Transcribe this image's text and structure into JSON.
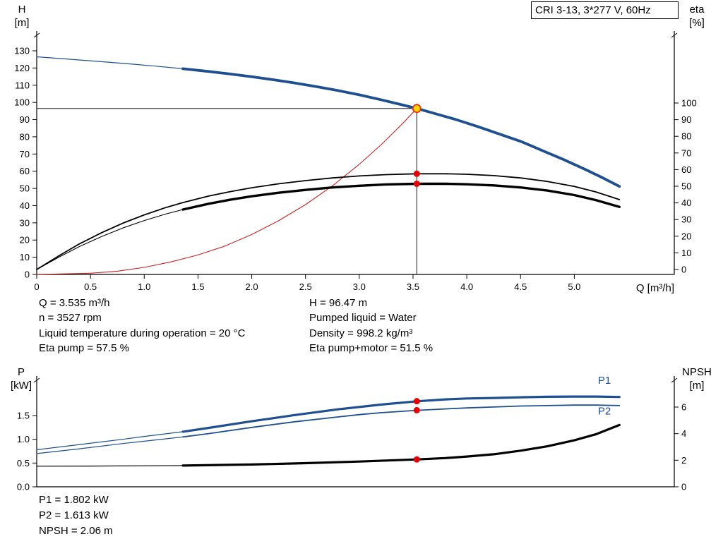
{
  "info_top": {
    "left": [
      "Q = 3.535 m³/h",
      "n = 3527 rpm",
      "Liquid temperature during operation = 20 °C",
      "Eta pump = 57.5 %"
    ],
    "right": [
      "H = 96.47 m",
      "Pumped liquid = Water",
      "Density = 998.2 kg/m³",
      "Eta pump+motor = 51.5 %"
    ]
  },
  "info_bottom": [
    "P1 = 1.802 kW",
    "P2 = 1.613 kW",
    "NPSH = 2.06 m"
  ],
  "chart_data": [
    {
      "id": "qh-eta",
      "type": "line",
      "title": "CRI 3-13, 3*277 V, 60Hz",
      "xlabel": "Q [m³/h]",
      "ylabel_left_lines": [
        "H",
        "[m]"
      ],
      "ylabel_right_lines": [
        "eta",
        "[%]"
      ],
      "xlim": [
        0,
        5.93
      ],
      "ylim_left": [
        0,
        130
      ],
      "ylim_right": [
        0,
        100
      ],
      "x_ticks": [
        0,
        0.5,
        1,
        1.5,
        2,
        2.5,
        3,
        3.5,
        4,
        4.5,
        5
      ],
      "x_tick_labels": [
        "0",
        "0.5",
        "1.0",
        "1.5",
        "2.0",
        "2.5",
        "3.0",
        "3.5",
        "4.0",
        "4.5",
        "5.0"
      ],
      "left_ticks": [
        0,
        10,
        20,
        30,
        40,
        50,
        60,
        70,
        80,
        90,
        100,
        110,
        120,
        130
      ],
      "left_tick_labels": [
        "0",
        "10",
        "20",
        "30",
        "40",
        "50",
        "60",
        "70",
        "80",
        "90",
        "100",
        "110",
        "120",
        "130"
      ],
      "right_ticks": [
        0,
        10,
        20,
        30,
        40,
        50,
        60,
        70,
        80,
        90,
        100
      ],
      "right_tick_labels": [
        "0",
        "10",
        "20",
        "30",
        "40",
        "50",
        "60",
        "70",
        "80",
        "90",
        "100"
      ],
      "guides": {
        "q": 3.535,
        "h": 96.47,
        "v_top": 99.2
      },
      "series": [
        {
          "name": "qh-curve-thin",
          "axis": "left",
          "color": "#1e4f91",
          "width": 1.2,
          "points": [
            [
              0,
              126.5
            ],
            [
              0.3,
              125.1
            ],
            [
              0.6,
              123.7
            ],
            [
              0.9,
              122.2
            ],
            [
              1.1,
              121.1
            ],
            [
              1.36,
              119.6
            ]
          ]
        },
        {
          "name": "qh-curve",
          "axis": "left",
          "color": "#1e4f91",
          "width": 3.8,
          "points": [
            [
              1.36,
              119.6
            ],
            [
              1.6,
              118.0
            ],
            [
              1.8,
              116.5
            ],
            [
              2.0,
              114.9
            ],
            [
              2.2,
              113.2
            ],
            [
              2.4,
              111.3
            ],
            [
              2.6,
              109.2
            ],
            [
              2.8,
              106.9
            ],
            [
              3.0,
              104.4
            ],
            [
              3.2,
              101.6
            ],
            [
              3.4,
              98.6
            ],
            [
              3.535,
              96.5
            ],
            [
              3.7,
              93.6
            ],
            [
              3.9,
              90.0
            ],
            [
              4.1,
              86.0
            ],
            [
              4.3,
              81.7
            ],
            [
              4.5,
              77.4
            ],
            [
              4.7,
              72.1
            ],
            [
              4.9,
              66.8
            ],
            [
              5.1,
              61.1
            ],
            [
              5.25,
              56.6
            ],
            [
              5.42,
              51.2
            ]
          ]
        },
        {
          "name": "system-curve",
          "axis": "left",
          "color": "#cc2222",
          "width": 1.1,
          "points": [
            [
              0,
              0
            ],
            [
              0.5,
              0.7
            ],
            [
              0.75,
              1.9
            ],
            [
              1.0,
              4.1
            ],
            [
              1.25,
              7.3
            ],
            [
              1.5,
              11.3
            ],
            [
              1.75,
              16.5
            ],
            [
              2.0,
              23.2
            ],
            [
              2.25,
              31.2
            ],
            [
              2.5,
              40.6
            ],
            [
              2.75,
              51.5
            ],
            [
              3.0,
              64.0
            ],
            [
              3.2,
              75.2
            ],
            [
              3.4,
              87.5
            ],
            [
              3.535,
              96.47
            ]
          ]
        },
        {
          "name": "eta-pump",
          "axis": "right",
          "color": "#000000",
          "width": 1.8,
          "points": [
            [
              0,
              0
            ],
            [
              0.2,
              8
            ],
            [
              0.4,
              15.5
            ],
            [
              0.6,
              22
            ],
            [
              0.8,
              27.8
            ],
            [
              1.0,
              32.8
            ],
            [
              1.2,
              37.2
            ],
            [
              1.36,
              40.2
            ],
            [
              1.6,
              44.1
            ],
            [
              1.8,
              46.8
            ],
            [
              2.0,
              49.1
            ],
            [
              2.25,
              51.5
            ],
            [
              2.5,
              53.4
            ],
            [
              2.75,
              55.0
            ],
            [
              3.0,
              56.2
            ],
            [
              3.25,
              57.0
            ],
            [
              3.535,
              57.5
            ],
            [
              3.8,
              57.5
            ],
            [
              4.0,
              57.2
            ],
            [
              4.25,
              56.4
            ],
            [
              4.5,
              55.0
            ],
            [
              4.75,
              52.9
            ],
            [
              5.0,
              49.9
            ],
            [
              5.2,
              46.6
            ],
            [
              5.42,
              42.0
            ]
          ]
        },
        {
          "name": "eta-pump-motor-thin",
          "axis": "right",
          "color": "#000000",
          "width": 1.1,
          "points": [
            [
              0,
              0
            ],
            [
              0.2,
              7.2
            ],
            [
              0.4,
              13.9
            ],
            [
              0.6,
              19.7
            ],
            [
              0.8,
              24.9
            ],
            [
              1.0,
              29.4
            ],
            [
              1.2,
              33.3
            ],
            [
              1.36,
              36.0
            ]
          ]
        },
        {
          "name": "eta-pump-motor",
          "axis": "right",
          "color": "#000000",
          "width": 3.4,
          "points": [
            [
              1.36,
              36.0
            ],
            [
              1.6,
              39.5
            ],
            [
              1.8,
              41.9
            ],
            [
              2.0,
              44.0
            ],
            [
              2.25,
              46.1
            ],
            [
              2.5,
              47.8
            ],
            [
              2.75,
              49.3
            ],
            [
              3.0,
              50.3
            ],
            [
              3.25,
              51.1
            ],
            [
              3.535,
              51.5
            ],
            [
              3.8,
              51.5
            ],
            [
              4.0,
              51.2
            ],
            [
              4.25,
              50.5
            ],
            [
              4.5,
              49.3
            ],
            [
              4.75,
              47.4
            ],
            [
              5.0,
              44.7
            ],
            [
              5.2,
              41.7
            ],
            [
              5.42,
              37.6
            ]
          ]
        }
      ],
      "markers": [
        {
          "name": "duty-point",
          "axis": "left",
          "q": 3.535,
          "v": 96.47,
          "r": 5.5,
          "fill": "#ffd500",
          "stroke": "#e63312"
        },
        {
          "name": "eta-pump-dot",
          "axis": "right",
          "q": 3.535,
          "v": 57.5,
          "r": 4.5,
          "fill": "#e60000"
        },
        {
          "name": "eta-pump-motor-dot",
          "axis": "right",
          "q": 3.535,
          "v": 51.5,
          "r": 4.5,
          "fill": "#e60000"
        }
      ]
    },
    {
      "id": "p-npsh",
      "type": "line",
      "title": "",
      "xlabel": "",
      "ylabel_left_lines": [
        "P",
        "[kW]"
      ],
      "ylabel_right_lines": [
        "NPSH",
        "[m]"
      ],
      "xlim": [
        0,
        5.93
      ],
      "ylim_left": [
        0,
        1.5
      ],
      "ylim_right": [
        0,
        6
      ],
      "x_ticks": [],
      "x_tick_labels": [],
      "left_ticks": [
        0,
        0.5,
        1,
        1.5
      ],
      "left_tick_labels": [
        "0.0",
        "0.5",
        "1.0",
        "1.5"
      ],
      "right_ticks": [
        0,
        2,
        4,
        6
      ],
      "right_tick_labels": [
        "0",
        "2",
        "4",
        "6"
      ],
      "series": [
        {
          "name": "p1-thin",
          "axis": "left",
          "color": "#1e4f91",
          "width": 1.2,
          "points": [
            [
              0,
              0.78
            ],
            [
              0.4,
              0.89
            ],
            [
              0.8,
              1.0
            ],
            [
              1.0,
              1.06
            ],
            [
              1.36,
              1.16
            ]
          ]
        },
        {
          "name": "p1",
          "axis": "left",
          "color": "#1e4f91",
          "width": 3.2,
          "label": {
            "text": "P1",
            "q": 5.28,
            "v": 2.17
          },
          "points": [
            [
              1.36,
              1.16
            ],
            [
              1.6,
              1.24
            ],
            [
              2.0,
              1.38
            ],
            [
              2.4,
              1.51
            ],
            [
              2.8,
              1.63
            ],
            [
              3.0,
              1.68
            ],
            [
              3.2,
              1.73
            ],
            [
              3.535,
              1.8
            ],
            [
              3.8,
              1.84
            ],
            [
              4.0,
              1.86
            ],
            [
              4.25,
              1.87
            ],
            [
              4.5,
              1.885
            ],
            [
              4.75,
              1.895
            ],
            [
              5.0,
              1.9
            ],
            [
              5.2,
              1.9
            ],
            [
              5.42,
              1.89
            ]
          ]
        },
        {
          "name": "p2-thin",
          "axis": "left",
          "color": "#1e4f91",
          "width": 1.2,
          "points": [
            [
              0,
              0.7
            ],
            [
              0.4,
              0.8
            ],
            [
              0.8,
              0.91
            ],
            [
              1.0,
              0.96
            ],
            [
              1.36,
              1.05
            ]
          ]
        },
        {
          "name": "p2",
          "axis": "left",
          "color": "#1e4f91",
          "width": 1.8,
          "label": {
            "text": "P2",
            "q": 5.28,
            "v": 1.52
          },
          "points": [
            [
              1.36,
              1.05
            ],
            [
              1.6,
              1.12
            ],
            [
              2.0,
              1.25
            ],
            [
              2.4,
              1.37
            ],
            [
              2.8,
              1.47
            ],
            [
              3.0,
              1.52
            ],
            [
              3.2,
              1.56
            ],
            [
              3.535,
              1.61
            ],
            [
              3.8,
              1.64
            ],
            [
              4.0,
              1.66
            ],
            [
              4.25,
              1.68
            ],
            [
              4.5,
              1.7
            ],
            [
              4.75,
              1.71
            ],
            [
              5.0,
              1.72
            ],
            [
              5.2,
              1.72
            ],
            [
              5.42,
              1.71
            ]
          ]
        },
        {
          "name": "npsh-thin",
          "axis": "right",
          "color": "#000000",
          "width": 1.2,
          "points": [
            [
              0,
              1.55
            ],
            [
              0.5,
              1.56
            ],
            [
              1.0,
              1.58
            ],
            [
              1.36,
              1.6
            ]
          ]
        },
        {
          "name": "npsh",
          "axis": "right",
          "color": "#000000",
          "width": 3.2,
          "points": [
            [
              1.36,
              1.6
            ],
            [
              2.0,
              1.68
            ],
            [
              2.5,
              1.78
            ],
            [
              3.0,
              1.9
            ],
            [
              3.535,
              2.06
            ],
            [
              3.8,
              2.16
            ],
            [
              4.0,
              2.28
            ],
            [
              4.25,
              2.45
            ],
            [
              4.5,
              2.72
            ],
            [
              4.75,
              3.05
            ],
            [
              5.0,
              3.5
            ],
            [
              5.2,
              3.95
            ],
            [
              5.42,
              4.65
            ]
          ]
        }
      ],
      "markers": [
        {
          "name": "p1-dot",
          "axis": "left",
          "q": 3.535,
          "v": 1.802,
          "r": 4.5,
          "fill": "#e60000"
        },
        {
          "name": "p2-dot",
          "axis": "left",
          "q": 3.535,
          "v": 1.613,
          "r": 4.5,
          "fill": "#e60000"
        },
        {
          "name": "npsh-dot",
          "axis": "right",
          "q": 3.535,
          "v": 2.06,
          "r": 4.5,
          "fill": "#e60000"
        }
      ]
    }
  ]
}
